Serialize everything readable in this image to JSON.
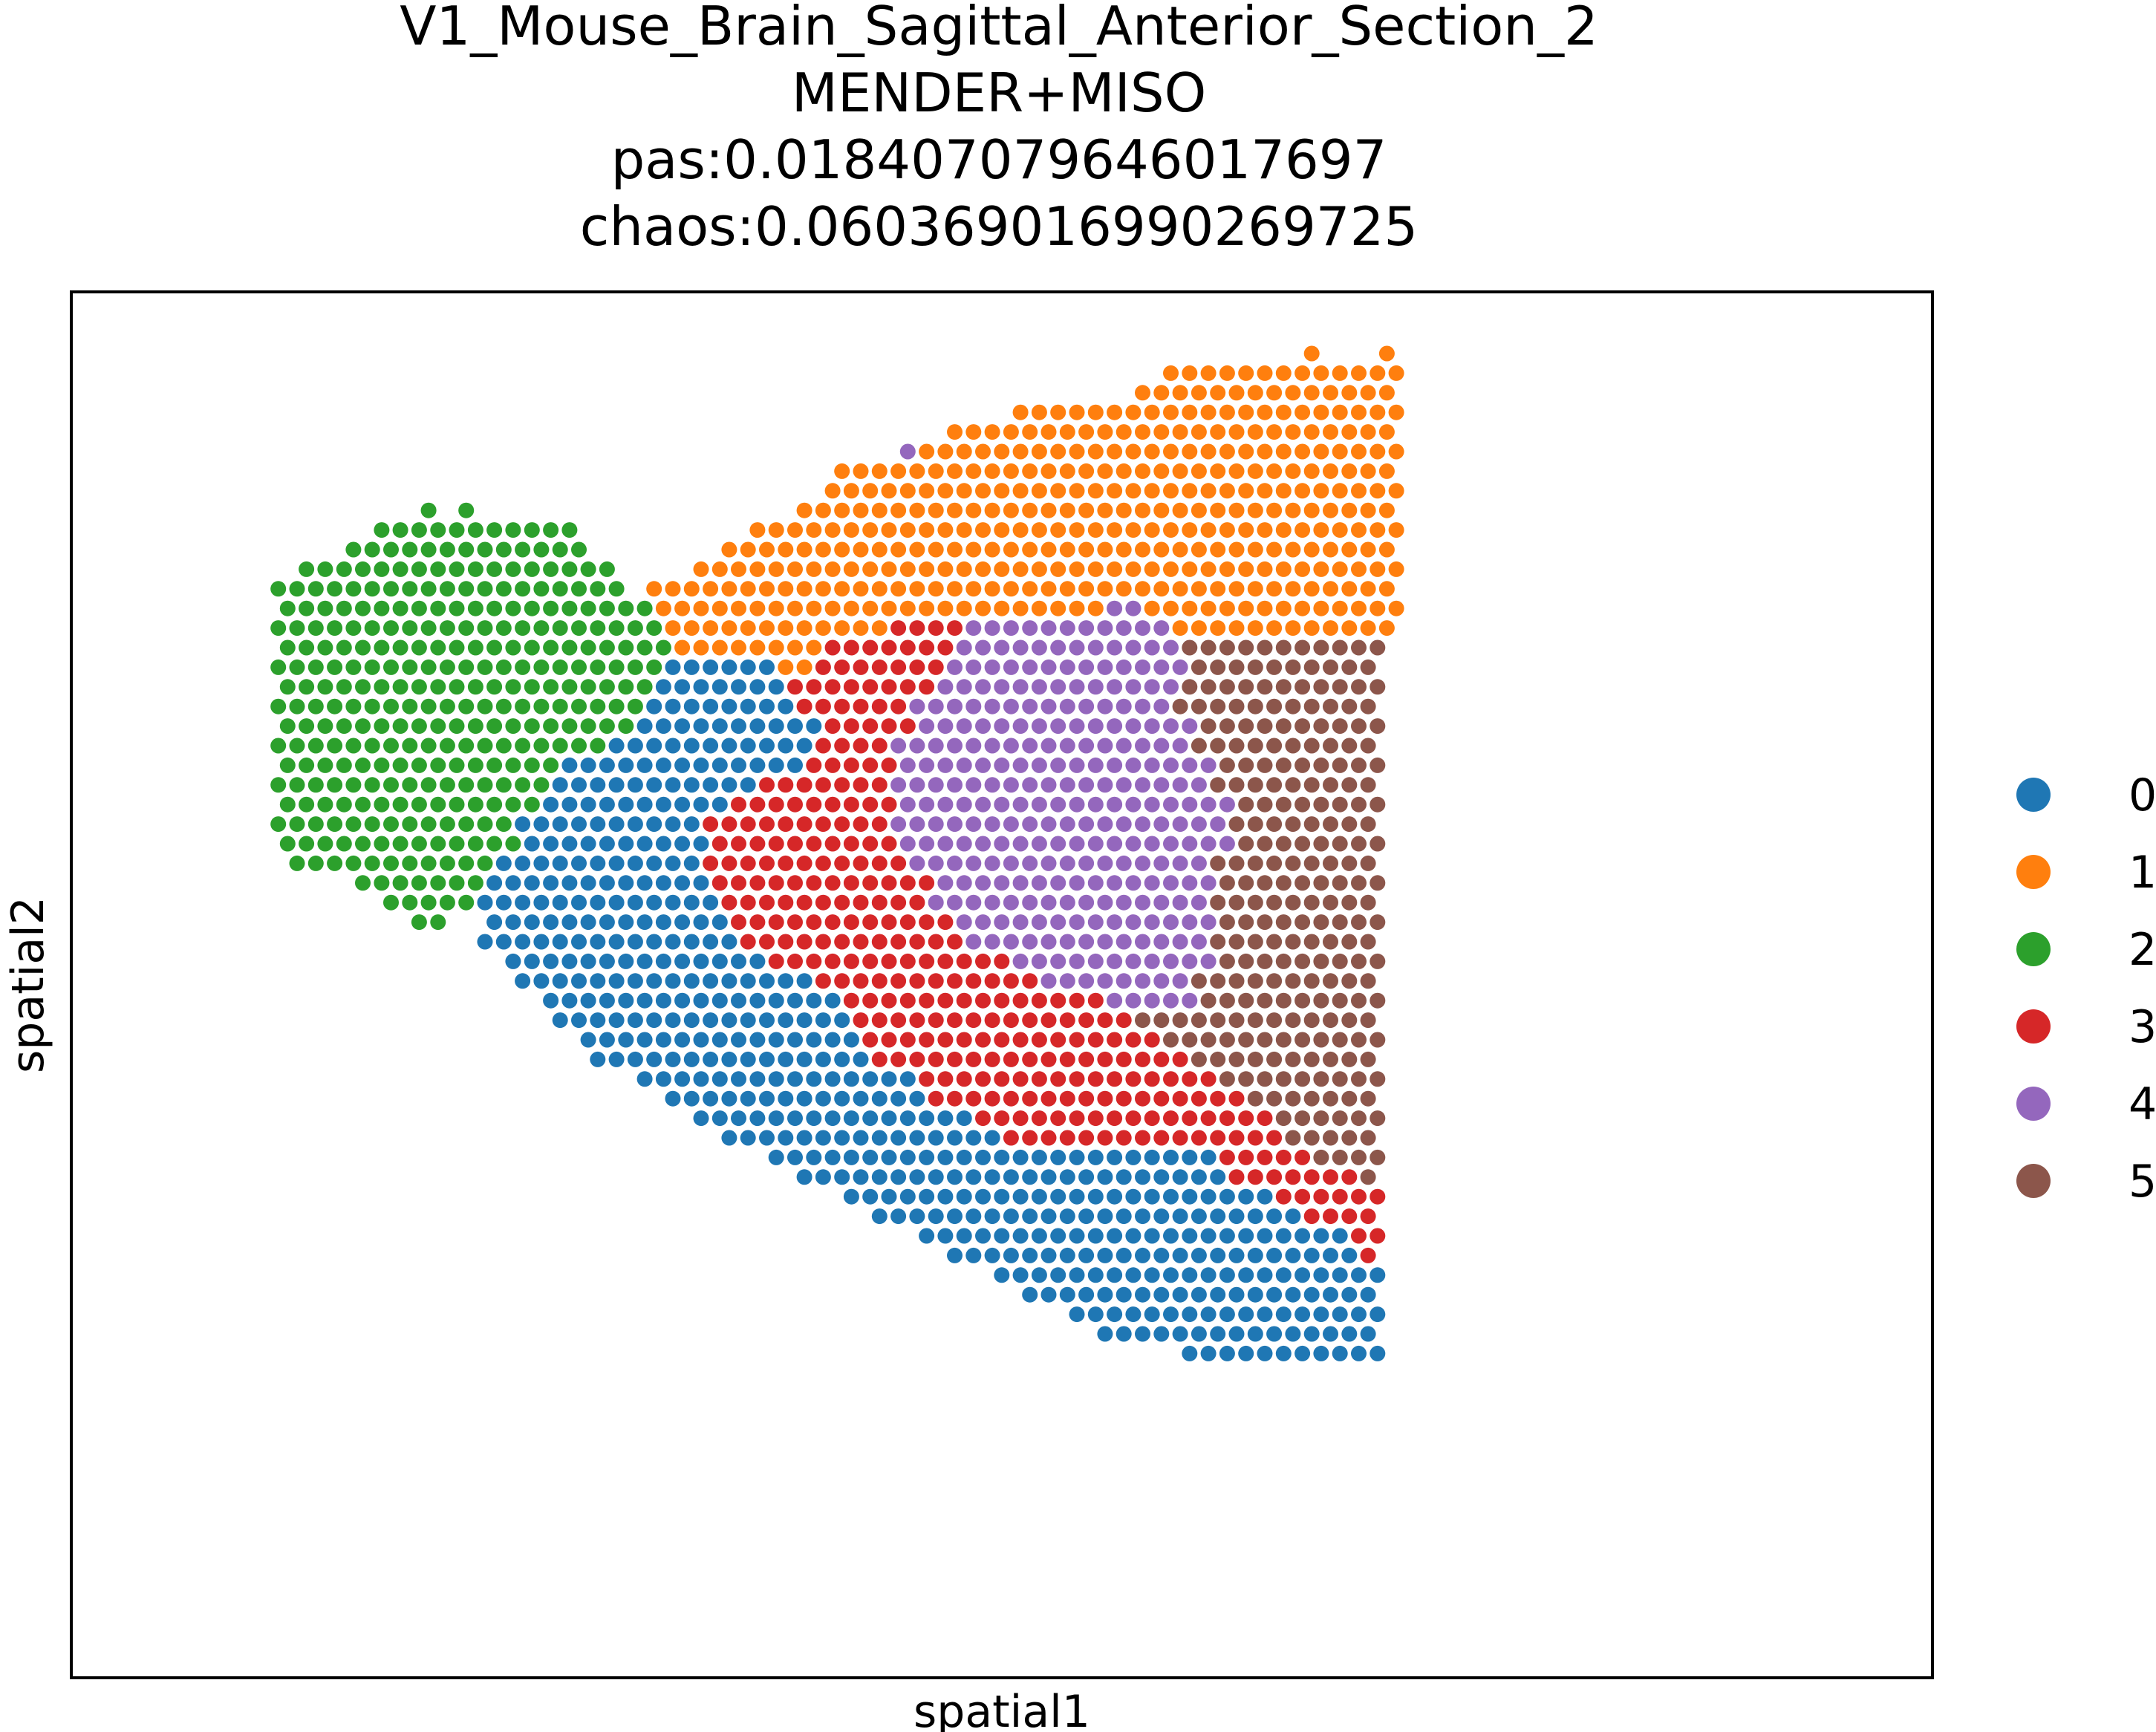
{
  "chart_data": {
    "type": "scatter",
    "title_lines": [
      "V1_Mouse_Brain_Sagittal_Anterior_Section_2",
      "MENDER+MISO",
      "pas:0.018407079646017697",
      "chaos:0.060369016990269725"
    ],
    "xlabel": "spatial1",
    "ylabel": "spatial2",
    "x_ticks": [],
    "y_ticks": [],
    "legend_position": "right",
    "grid": false,
    "categories": [
      "0",
      "1",
      "2",
      "3",
      "4",
      "5"
    ],
    "colors": [
      "#1f77b4",
      "#ff7f0e",
      "#2ca02c",
      "#d62728",
      "#9467bd",
      "#8c564b"
    ],
    "rows": [
      {
        "y": 1,
        "segments": [
          [
            63,
            63,
            1
          ],
          [
            67,
            67,
            1
          ]
        ]
      },
      {
        "y": 2,
        "segments": [
          [
            55,
            67,
            1
          ]
        ]
      },
      {
        "y": 3,
        "segments": [
          [
            54,
            67,
            1
          ]
        ]
      },
      {
        "y": 4,
        "segments": [
          [
            47,
            67,
            1
          ]
        ]
      },
      {
        "y": 5,
        "segments": [
          [
            44,
            67,
            1
          ]
        ]
      },
      {
        "y": 6,
        "segments": [
          [
            41,
            41,
            4
          ],
          [
            42,
            67,
            1
          ]
        ]
      },
      {
        "y": 7,
        "segments": [
          [
            38,
            67,
            1
          ]
        ]
      },
      {
        "y": 8,
        "segments": [
          [
            37,
            67,
            1
          ]
        ]
      },
      {
        "y": 9,
        "segments": [
          [
            16,
            16,
            2
          ],
          [
            18,
            18,
            2
          ],
          [
            36,
            67,
            1
          ]
        ]
      },
      {
        "y": 10,
        "segments": [
          [
            13,
            23,
            2
          ],
          [
            33,
            67,
            1
          ]
        ]
      },
      {
        "y": 11,
        "segments": [
          [
            12,
            24,
            2
          ],
          [
            32,
            67,
            1
          ]
        ]
      },
      {
        "y": 12,
        "segments": [
          [
            9,
            25,
            2
          ],
          [
            30,
            67,
            1
          ]
        ]
      },
      {
        "y": 13,
        "segments": [
          [
            8,
            26,
            2
          ],
          [
            28,
            67,
            1
          ]
        ]
      },
      {
        "y": 14,
        "segments": [
          [
            8,
            27,
            2
          ],
          [
            28,
            51,
            1
          ],
          [
            52,
            53,
            4
          ],
          [
            54,
            67,
            1
          ]
        ]
      },
      {
        "y": 15,
        "segments": [
          [
            8,
            28,
            2
          ],
          [
            29,
            40,
            1
          ],
          [
            41,
            44,
            3
          ],
          [
            45,
            55,
            4
          ],
          [
            56,
            67,
            1
          ]
        ]
      },
      {
        "y": 16,
        "segments": [
          [
            8,
            28,
            2
          ],
          [
            29,
            36,
            1
          ],
          [
            37,
            43,
            3
          ],
          [
            44,
            55,
            4
          ],
          [
            56,
            66,
            5
          ]
        ]
      },
      {
        "y": 17,
        "segments": [
          [
            8,
            28,
            2
          ],
          [
            29,
            34,
            0
          ],
          [
            35,
            36,
            1
          ],
          [
            37,
            43,
            3
          ],
          [
            44,
            56,
            4
          ],
          [
            57,
            66,
            5
          ]
        ]
      },
      {
        "y": 18,
        "segments": [
          [
            8,
            27,
            2
          ],
          [
            28,
            34,
            0
          ],
          [
            35,
            42,
            3
          ],
          [
            43,
            55,
            4
          ],
          [
            56,
            66,
            5
          ]
        ]
      },
      {
        "y": 19,
        "segments": [
          [
            8,
            27,
            2
          ],
          [
            28,
            35,
            0
          ],
          [
            36,
            41,
            3
          ],
          [
            42,
            55,
            4
          ],
          [
            56,
            66,
            5
          ]
        ]
      },
      {
        "y": 20,
        "segments": [
          [
            8,
            26,
            2
          ],
          [
            27,
            36,
            0
          ],
          [
            37,
            41,
            3
          ],
          [
            42,
            56,
            4
          ],
          [
            57,
            66,
            5
          ]
        ]
      },
      {
        "y": 21,
        "segments": [
          [
            8,
            25,
            2
          ],
          [
            26,
            36,
            0
          ],
          [
            37,
            40,
            3
          ],
          [
            41,
            56,
            4
          ],
          [
            57,
            66,
            5
          ]
        ]
      },
      {
        "y": 22,
        "segments": [
          [
            8,
            22,
            2
          ],
          [
            23,
            35,
            0
          ],
          [
            36,
            40,
            3
          ],
          [
            41,
            57,
            4
          ],
          [
            58,
            66,
            5
          ]
        ]
      },
      {
        "y": 23,
        "segments": [
          [
            8,
            22,
            2
          ],
          [
            23,
            33,
            0
          ],
          [
            34,
            40,
            3
          ],
          [
            41,
            57,
            4
          ],
          [
            58,
            66,
            5
          ]
        ]
      },
      {
        "y": 24,
        "segments": [
          [
            8,
            21,
            2
          ],
          [
            22,
            31,
            0
          ],
          [
            32,
            40,
            3
          ],
          [
            41,
            58,
            4
          ],
          [
            59,
            66,
            5
          ]
        ]
      },
      {
        "y": 25,
        "segments": [
          [
            8,
            20,
            2
          ],
          [
            21,
            30,
            0
          ],
          [
            31,
            40,
            3
          ],
          [
            41,
            58,
            4
          ],
          [
            59,
            66,
            5
          ]
        ]
      },
      {
        "y": 26,
        "segments": [
          [
            8,
            20,
            2
          ],
          [
            21,
            30,
            0
          ],
          [
            31,
            40,
            3
          ],
          [
            41,
            58,
            4
          ],
          [
            59,
            66,
            5
          ]
        ]
      },
      {
        "y": 27,
        "segments": [
          [
            9,
            19,
            2
          ],
          [
            20,
            30,
            0
          ],
          [
            31,
            41,
            3
          ],
          [
            42,
            57,
            4
          ],
          [
            58,
            66,
            5
          ]
        ]
      },
      {
        "y": 28,
        "segments": [
          [
            12,
            18,
            2
          ],
          [
            19,
            30,
            0
          ],
          [
            31,
            42,
            3
          ],
          [
            43,
            57,
            4
          ],
          [
            58,
            66,
            5
          ]
        ]
      },
      {
        "y": 29,
        "segments": [
          [
            14,
            18,
            2
          ],
          [
            19,
            31,
            0
          ],
          [
            32,
            42,
            3
          ],
          [
            43,
            57,
            4
          ],
          [
            58,
            66,
            5
          ]
        ]
      },
      {
        "y": 30,
        "segments": [
          [
            15,
            16,
            2
          ],
          [
            19,
            31,
            0
          ],
          [
            32,
            43,
            3
          ],
          [
            44,
            57,
            4
          ],
          [
            58,
            66,
            5
          ]
        ]
      },
      {
        "y": 31,
        "segments": [
          [
            19,
            32,
            0
          ],
          [
            33,
            44,
            3
          ],
          [
            45,
            57,
            4
          ],
          [
            58,
            66,
            5
          ]
        ]
      },
      {
        "y": 32,
        "segments": [
          [
            20,
            33,
            0
          ],
          [
            34,
            46,
            3
          ],
          [
            47,
            57,
            4
          ],
          [
            58,
            66,
            5
          ]
        ]
      },
      {
        "y": 33,
        "segments": [
          [
            21,
            36,
            0
          ],
          [
            37,
            48,
            3
          ],
          [
            49,
            56,
            4
          ],
          [
            57,
            66,
            5
          ]
        ]
      },
      {
        "y": 34,
        "segments": [
          [
            22,
            37,
            0
          ],
          [
            38,
            51,
            3
          ],
          [
            52,
            56,
            4
          ],
          [
            57,
            66,
            5
          ]
        ]
      },
      {
        "y": 35,
        "segments": [
          [
            23,
            38,
            0
          ],
          [
            39,
            53,
            3
          ],
          [
            54,
            66,
            5
          ]
        ]
      },
      {
        "y": 36,
        "segments": [
          [
            24,
            38,
            0
          ],
          [
            39,
            54,
            3
          ],
          [
            55,
            66,
            5
          ]
        ]
      },
      {
        "y": 37,
        "segments": [
          [
            25,
            39,
            0
          ],
          [
            40,
            56,
            3
          ],
          [
            57,
            66,
            5
          ]
        ]
      },
      {
        "y": 38,
        "segments": [
          [
            27,
            41,
            0
          ],
          [
            42,
            57,
            3
          ],
          [
            58,
            66,
            5
          ]
        ]
      },
      {
        "y": 39,
        "segments": [
          [
            29,
            42,
            0
          ],
          [
            43,
            59,
            3
          ],
          [
            60,
            66,
            5
          ]
        ]
      },
      {
        "y": 40,
        "segments": [
          [
            30,
            44,
            0
          ],
          [
            45,
            60,
            3
          ],
          [
            61,
            66,
            5
          ]
        ]
      },
      {
        "y": 41,
        "segments": [
          [
            32,
            46,
            0
          ],
          [
            47,
            61,
            3
          ],
          [
            62,
            66,
            5
          ]
        ]
      },
      {
        "y": 42,
        "segments": [
          [
            34,
            57,
            0
          ],
          [
            58,
            62,
            3
          ],
          [
            63,
            66,
            5
          ]
        ]
      },
      {
        "y": 43,
        "segments": [
          [
            36,
            58,
            0
          ],
          [
            59,
            65,
            3
          ],
          [
            66,
            66,
            5
          ]
        ]
      },
      {
        "y": 44,
        "segments": [
          [
            38,
            60,
            0
          ],
          [
            61,
            66,
            3
          ]
        ]
      },
      {
        "y": 45,
        "segments": [
          [
            40,
            62,
            0
          ],
          [
            63,
            66,
            3
          ]
        ]
      },
      {
        "y": 46,
        "segments": [
          [
            42,
            64,
            0
          ],
          [
            65,
            66,
            3
          ]
        ]
      },
      {
        "y": 47,
        "segments": [
          [
            44,
            65,
            0
          ],
          [
            66,
            66,
            3
          ]
        ]
      },
      {
        "y": 48,
        "segments": [
          [
            46,
            66,
            0
          ]
        ]
      },
      {
        "y": 49,
        "segments": [
          [
            48,
            66,
            0
          ]
        ]
      },
      {
        "y": 50,
        "segments": [
          [
            50,
            66,
            0
          ]
        ]
      },
      {
        "y": 51,
        "segments": [
          [
            52,
            66,
            0
          ]
        ]
      },
      {
        "y": 52,
        "segments": [
          [
            56,
            66,
            0
          ]
        ]
      }
    ]
  }
}
